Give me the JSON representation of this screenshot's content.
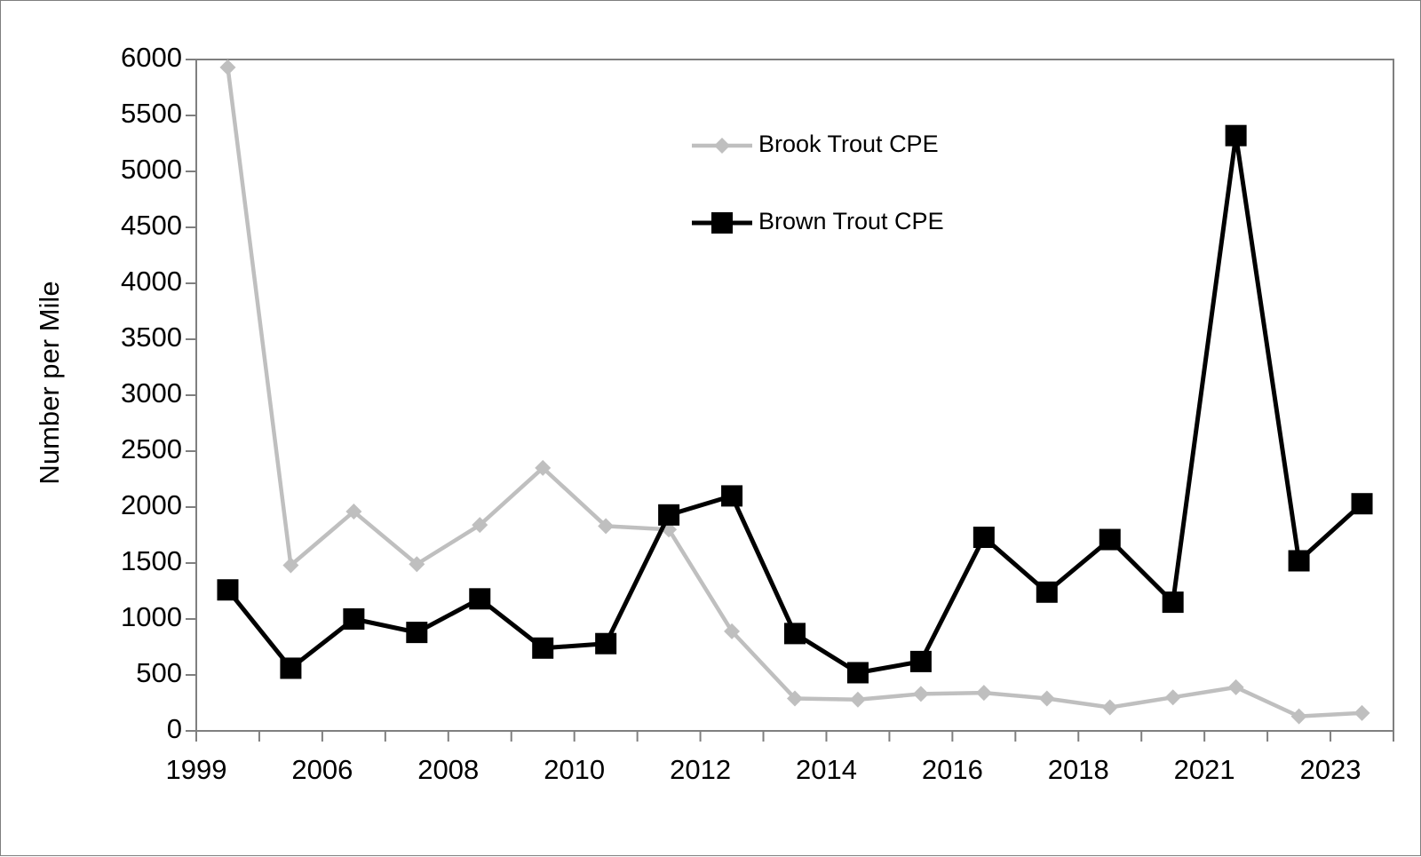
{
  "chart_data": {
    "type": "line",
    "ylabel": "Number per Mile",
    "xlabel": "",
    "ylim": [
      0,
      6000
    ],
    "y_ticks": [
      "0",
      "500",
      "1000",
      "1500",
      "2000",
      "2500",
      "3000",
      "3500",
      "4000",
      "4500",
      "5000",
      "5500",
      "6000"
    ],
    "x_tick_labels": [
      "1999",
      "2006",
      "2008",
      "2010",
      "2012",
      "2014",
      "2016",
      "2018",
      "2021",
      "2023"
    ],
    "legend_position": "top-center inside plot",
    "grid": false,
    "series": [
      {
        "name": "Brook Trout CPE",
        "color": "#bfbfbf",
        "marker": "diamond",
        "values": [
          5930,
          1480,
          1960,
          1490,
          1840,
          2350,
          1830,
          1800,
          890,
          290,
          280,
          330,
          340,
          290,
          210,
          300,
          390,
          130,
          160
        ]
      },
      {
        "name": "Brown Trout CPE",
        "color": "#000000",
        "marker": "square",
        "values": [
          1260,
          560,
          1000,
          880,
          1180,
          740,
          780,
          1930,
          2100,
          870,
          520,
          620,
          1730,
          1240,
          1710,
          1150,
          5320,
          1520,
          2030
        ]
      }
    ]
  }
}
